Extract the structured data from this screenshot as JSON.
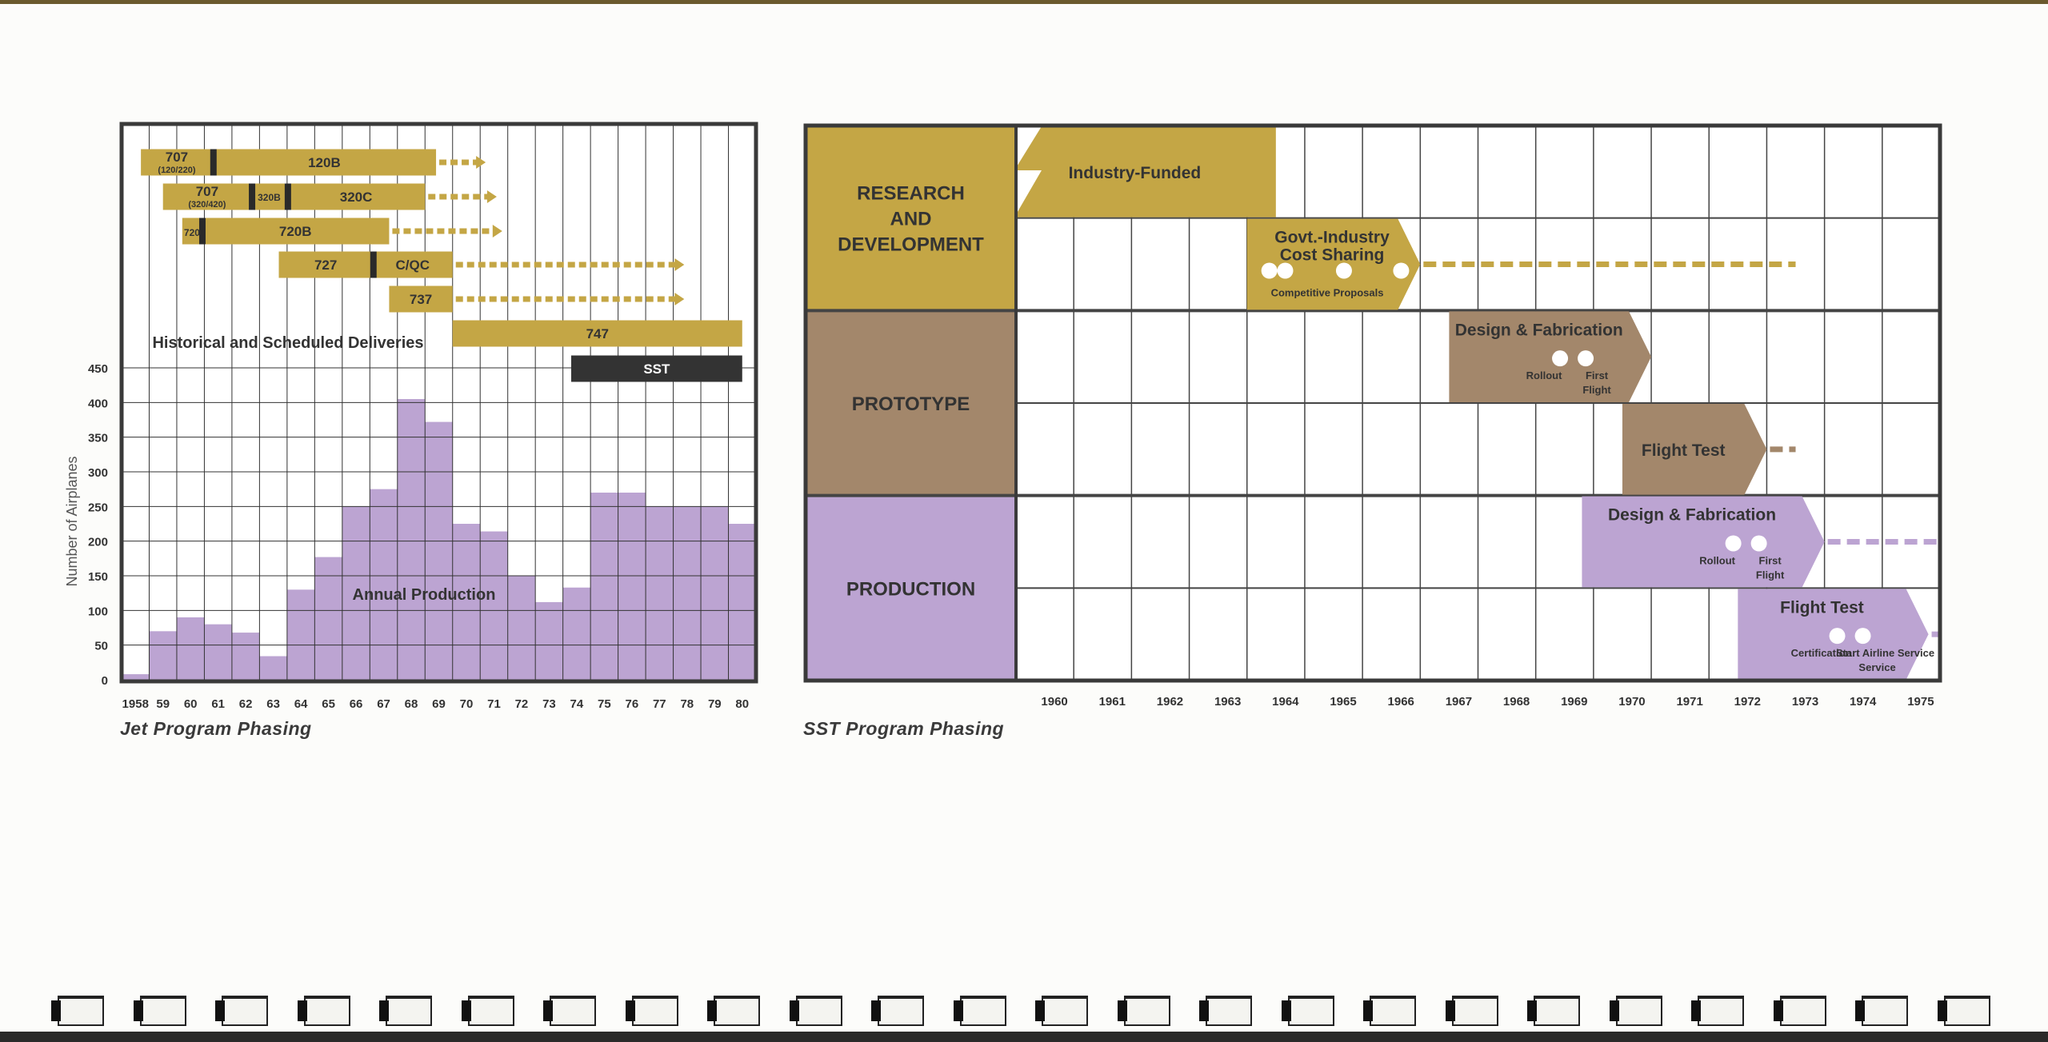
{
  "colors": {
    "gold": "#c4a645",
    "brown": "#a3876b",
    "purple": "#bca4d2",
    "dark": "#333333",
    "grid": "#444444",
    "white": "#ffffff"
  },
  "jet_chart": {
    "caption": "Jet Program Phasing",
    "deliveries_label": "Historical and Scheduled Deliveries",
    "production_label": "Annual Production",
    "ylabel": "Number of Airplanes",
    "yticks": [
      "0",
      "50",
      "100",
      "150",
      "200",
      "250",
      "300",
      "350",
      "400",
      "450"
    ],
    "xticks": [
      "1958",
      "59",
      "60",
      "61",
      "62",
      "63",
      "64",
      "65",
      "66",
      "67",
      "68",
      "69",
      "70",
      "71",
      "72",
      "73",
      "74",
      "75",
      "76",
      "77",
      "78",
      "79",
      "80"
    ],
    "programs": [
      {
        "label": "707",
        "sublabel": "(120/220)",
        "start": 1958.7,
        "end": 1961.3,
        "second_label": "120B",
        "second_end": 1969.4,
        "arrow_end": 1971.2
      },
      {
        "label": "707",
        "sublabel": "(320/420)",
        "start": 1959.5,
        "end": 1962.7,
        "mid_label": "320B",
        "mid_end": 1964.0,
        "second_label": "320C",
        "second_end": 1969.0,
        "arrow_end": 1971.6
      },
      {
        "label": "720",
        "start": 1960.2,
        "end": 1960.9,
        "second_label": "720B",
        "second_end": 1967.7,
        "arrow_end": 1971.8
      },
      {
        "label": "727",
        "start": 1963.7,
        "end": 1967.1,
        "second_label": "C/QC",
        "second_end": 1970.0,
        "arrow_end": 1978.4
      },
      {
        "label": "737",
        "start": 1967.7,
        "end": 1970.0,
        "arrow_end": 1978.4
      },
      {
        "label": "747",
        "start": 1970.0,
        "end": 1980.5
      },
      {
        "label": "SST",
        "start": 1974.3,
        "end": 1980.5
      }
    ]
  },
  "chart_data": {
    "type": "bar",
    "title": "",
    "xlabel": "",
    "ylabel": "Number of Airplanes",
    "ylim": [
      0,
      450
    ],
    "categories": [
      "1958",
      "59",
      "60",
      "61",
      "62",
      "63",
      "64",
      "65",
      "66",
      "67",
      "68",
      "69",
      "70",
      "71",
      "72",
      "73",
      "74",
      "75",
      "76",
      "77",
      "78",
      "79",
      "80"
    ],
    "values": [
      8,
      70,
      90,
      80,
      68,
      34,
      130,
      177,
      250,
      275,
      405,
      372,
      225,
      214,
      150,
      112,
      133,
      270,
      270,
      250,
      250,
      250,
      225
    ],
    "grid": true,
    "series_label": "Annual Production"
  },
  "sst_chart": {
    "caption": "SST Program Phasing",
    "phases": [
      {
        "label": "RESEARCH AND DEVELOPMENT",
        "lines": [
          "RESEARCH",
          "AND",
          "DEVELOPMENT"
        ]
      },
      {
        "label": "PROTOTYPE",
        "lines": [
          "PROTOTYPE"
        ]
      },
      {
        "label": "PRODUCTION",
        "lines": [
          "PRODUCTION"
        ]
      }
    ],
    "years": [
      "1960",
      "1961",
      "1962",
      "1963",
      "1964",
      "1965",
      "1966",
      "1967",
      "1968",
      "1969",
      "1970",
      "1971",
      "1972",
      "1973",
      "1974",
      "1975"
    ],
    "tasks": [
      {
        "label": "Industry-Funded",
        "start": 1959.5,
        "end": 1964.0,
        "row": 0
      },
      {
        "label_lines": [
          "Govt.-Industry",
          "Cost Sharing"
        ],
        "sublabel": "Competitive Proposals",
        "start": 1963.5,
        "end": 1966.5,
        "row": 1,
        "arrow_end": 1973.0
      },
      {
        "label": "Design & Fabrication",
        "start": 1967.0,
        "end": 1970.5,
        "row": 2,
        "milestones": [
          "Rollout",
          "First Flight"
        ]
      },
      {
        "label": "Flight Test",
        "start": 1970.0,
        "end": 1972.5,
        "row": 3,
        "arrow_end": 1973.0
      },
      {
        "label": "Design & Fabrication",
        "start": 1969.3,
        "end": 1973.5,
        "row": 4,
        "milestones": [
          "Rollout",
          "First Flight"
        ],
        "arrow_end": 1976.0
      },
      {
        "label": "Flight Test",
        "start": 1972.0,
        "end": 1975.3,
        "row": 5,
        "milestones": [
          "Certification",
          "Start Airline Service"
        ],
        "arrow_end": 1976.0
      }
    ]
  }
}
